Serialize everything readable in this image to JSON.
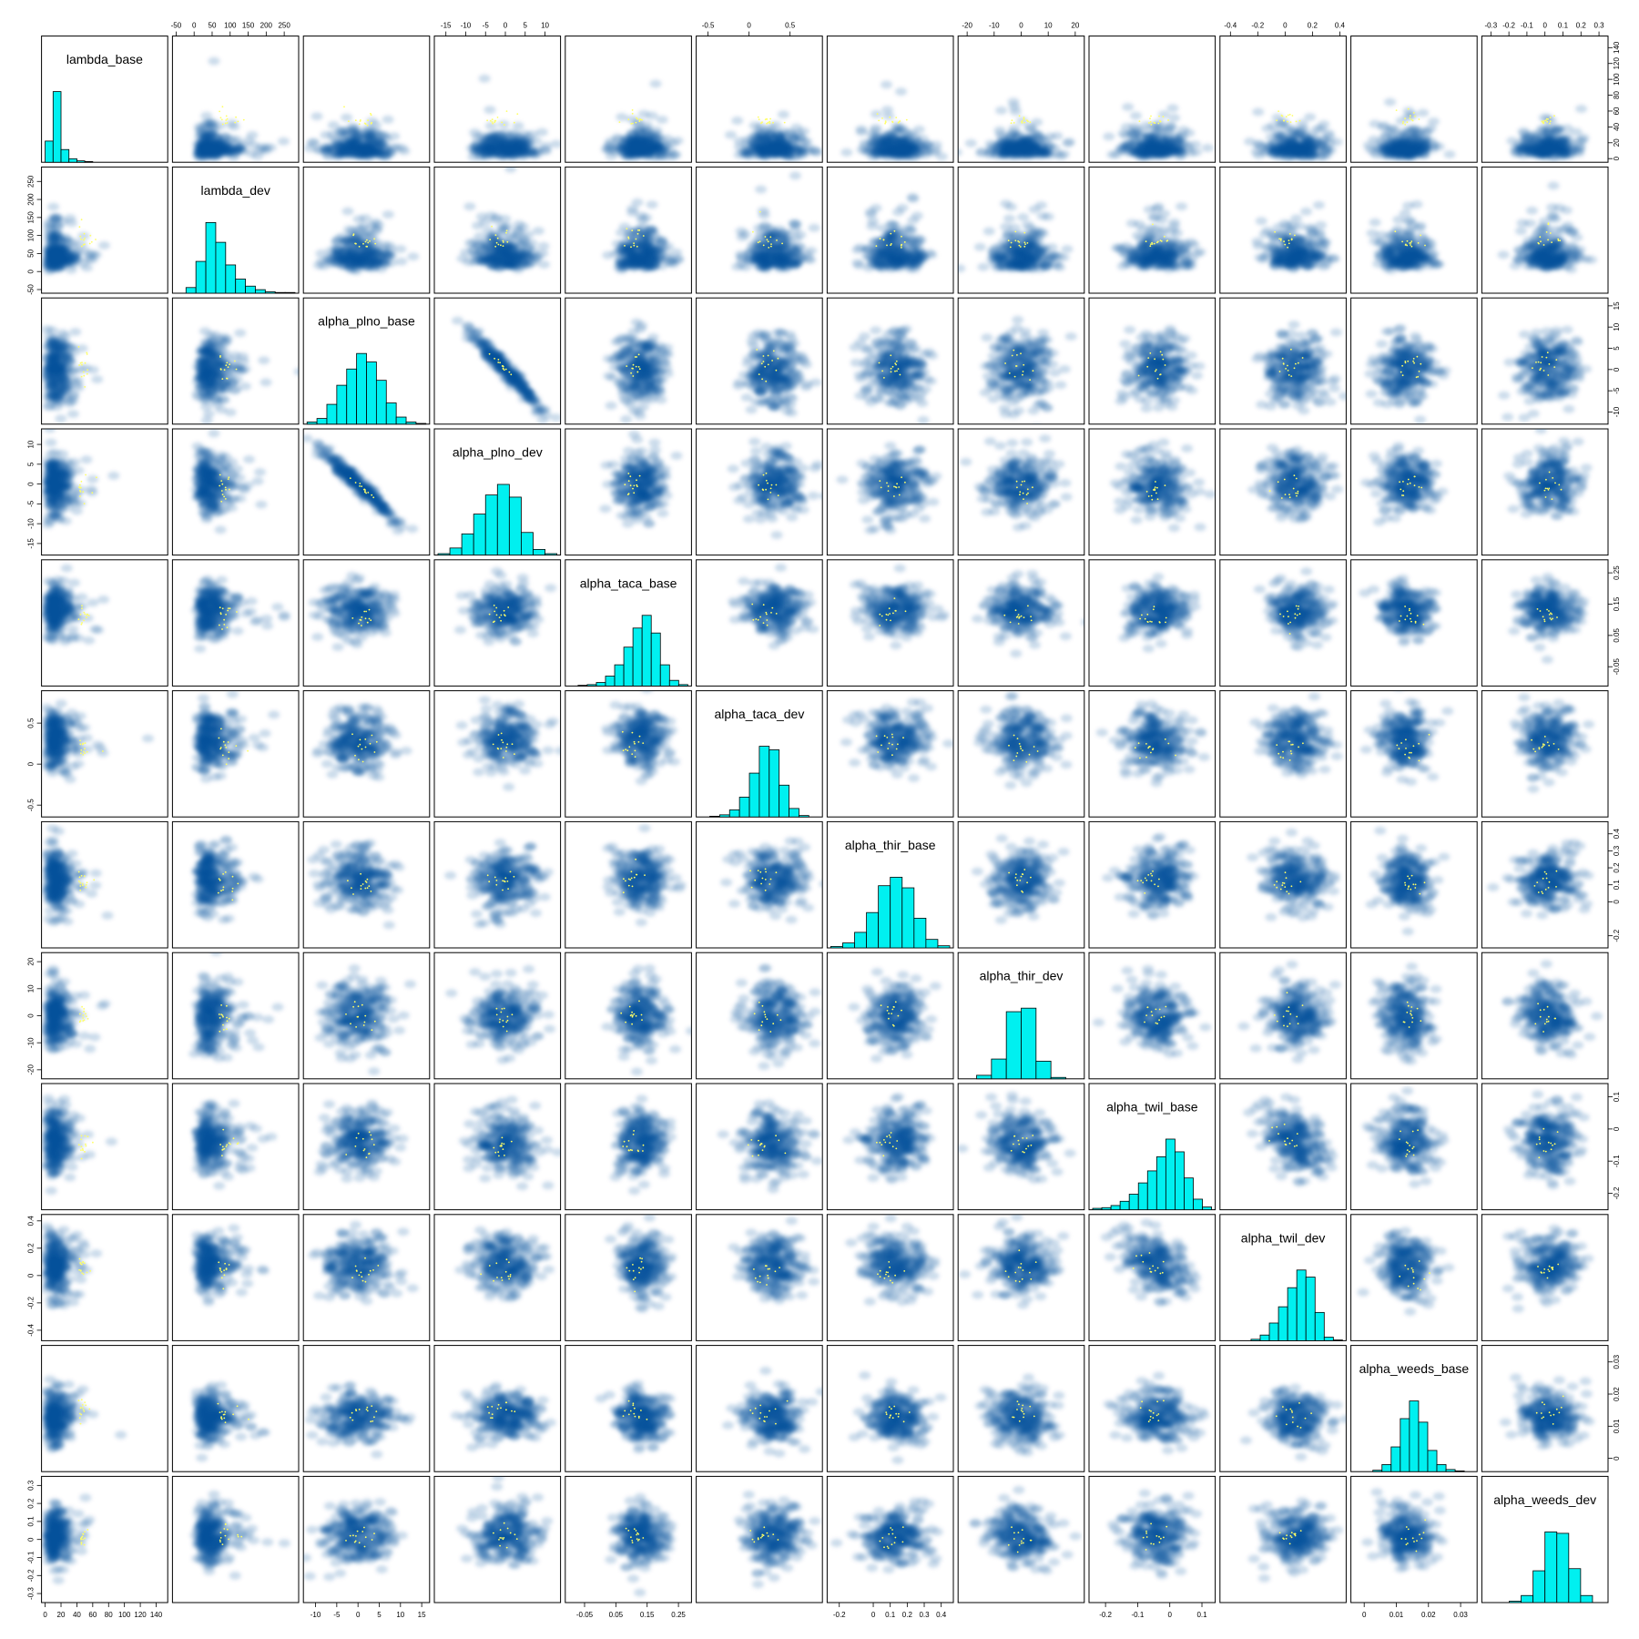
{
  "chart_data": {
    "type": "scatter",
    "kind": "pairs-matrix",
    "diagonal": "histogram",
    "off_diagonal": "smoothed-scatter",
    "colors": {
      "histogram_fill": "#00f0f0",
      "density": "#08519c",
      "points": "#ffff66",
      "frame": "#000000"
    },
    "variables": [
      {
        "name": "lambda_base",
        "range": [
          0,
          150
        ],
        "ticks": [
          0,
          20,
          40,
          60,
          80,
          100,
          120,
          140
        ],
        "center": 15,
        "sd": 10,
        "skew": true,
        "hist": [
          30,
          100,
          18,
          5,
          2,
          1,
          0,
          0,
          0,
          0,
          0,
          0,
          0,
          0,
          0
        ]
      },
      {
        "name": "lambda_dev",
        "range": [
          -50,
          280
        ],
        "ticks": [
          -50,
          0,
          50,
          100,
          150,
          200,
          250
        ],
        "center": 50,
        "sd": 30,
        "skew": true,
        "hist": [
          0,
          8,
          45,
          100,
          72,
          40,
          20,
          10,
          5,
          2,
          1,
          1
        ]
      },
      {
        "name": "alpha_plno_base",
        "range": [
          -12,
          16
        ],
        "ticks": [
          -10,
          -5,
          0,
          5,
          10,
          15
        ],
        "center": 0,
        "sd": 4,
        "skew": false,
        "hist": [
          3,
          8,
          28,
          55,
          78,
          100,
          88,
          62,
          30,
          10,
          3,
          1
        ]
      },
      {
        "name": "alpha_plno_dev",
        "range": [
          -17,
          13
        ],
        "ticks": [
          -15,
          -10,
          -5,
          0,
          5,
          10
        ],
        "center": 0,
        "sd": 4,
        "skew": false,
        "hist": [
          2,
          10,
          30,
          58,
          85,
          100,
          82,
          32,
          8,
          2
        ]
      },
      {
        "name": "alpha_taca_base",
        "range": [
          -0.1,
          0.28
        ],
        "ticks": [
          -0.05,
          0.05,
          0.15,
          0.25
        ],
        "center": 0.13,
        "sd": 0.04,
        "skew": false,
        "hist": [
          0,
          1,
          2,
          5,
          14,
          30,
          55,
          82,
          100,
          75,
          30,
          8,
          2
        ]
      },
      {
        "name": "alpha_taca_dev",
        "range": [
          -0.6,
          0.85
        ],
        "ticks": [
          -0.5,
          0.0,
          0.5
        ],
        "center": 0.3,
        "sd": 0.18,
        "skew": false,
        "hist": [
          0,
          1,
          3,
          10,
          28,
          62,
          100,
          95,
          45,
          12,
          2,
          0
        ]
      },
      {
        "name": "alpha_thir_base",
        "range": [
          -0.25,
          0.45
        ],
        "ticks": [
          -0.2,
          0.0,
          0.1,
          0.2,
          0.3,
          0.4
        ],
        "center": 0.13,
        "sd": 0.09,
        "skew": false,
        "hist": [
          2,
          7,
          22,
          50,
          88,
          100,
          85,
          42,
          12,
          3
        ]
      },
      {
        "name": "alpha_thir_dev",
        "range": [
          -22,
          22
        ],
        "ticks": [
          -20,
          -10,
          0,
          10,
          20
        ],
        "center": 0,
        "sd": 6,
        "skew": false,
        "hist": [
          0,
          5,
          28,
          95,
          100,
          25,
          2,
          0
        ]
      },
      {
        "name": "alpha_twil_base",
        "range": [
          -0.24,
          0.13
        ],
        "ticks": [
          -0.2,
          -0.1,
          0.0,
          0.1
        ],
        "center": -0.04,
        "sd": 0.05,
        "skew": false,
        "hist": [
          2,
          3,
          6,
          12,
          22,
          38,
          55,
          75,
          100,
          82,
          45,
          15,
          4
        ]
      },
      {
        "name": "alpha_twil_dev",
        "range": [
          -0.45,
          0.42
        ],
        "ticks": [
          -0.4,
          -0.2,
          0.0,
          0.2,
          0.4
        ],
        "center": 0.08,
        "sd": 0.11,
        "skew": false,
        "hist": [
          0,
          0,
          0,
          2,
          8,
          25,
          48,
          75,
          100,
          90,
          40,
          5,
          1
        ]
      },
      {
        "name": "alpha_weeds_base",
        "range": [
          -0.003,
          0.034
        ],
        "ticks": [
          0.0,
          0.01,
          0.02,
          0.03
        ],
        "center": 0.013,
        "sd": 0.004,
        "skew": false,
        "hist": [
          0,
          0,
          2,
          10,
          35,
          75,
          100,
          70,
          30,
          10,
          3,
          1,
          0
        ]
      },
      {
        "name": "alpha_weeds_dev",
        "range": [
          -0.33,
          0.33
        ],
        "ticks": [
          -0.3,
          -0.2,
          -0.1,
          0.0,
          0.1,
          0.2,
          0.3
        ],
        "center": 0.02,
        "sd": 0.08,
        "skew": false,
        "hist": [
          0,
          0,
          2,
          10,
          45,
          100,
          98,
          48,
          10,
          0
        ]
      }
    ],
    "axis_labels": {
      "top_columns": [
        1,
        3,
        5,
        7,
        9,
        11
      ],
      "right_rows": [
        0,
        2,
        4,
        6,
        8,
        10
      ],
      "bottom_columns": [
        0,
        2,
        4,
        6,
        8,
        10
      ],
      "left_rows": [
        1,
        3,
        5,
        7,
        9,
        11
      ]
    },
    "correlations": [
      {
        "i": 2,
        "j": 3,
        "r": -0.97
      },
      {
        "i": 8,
        "j": 9,
        "r": -0.45
      },
      {
        "i": 4,
        "j": 5,
        "r": -0.2
      }
    ]
  }
}
